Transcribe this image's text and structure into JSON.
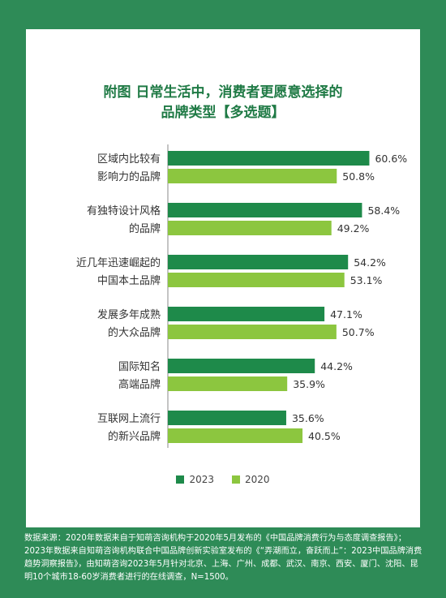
{
  "title_line1": "附图 日常生活中，消费者更愿意选择的",
  "title_line2": "品牌类型【多选题】",
  "colors": {
    "2023": "#1e8a4a",
    "2020": "#8cc63f",
    "background": "#2e8b57"
  },
  "chart_data": {
    "type": "bar",
    "orientation": "horizontal",
    "title": "附图 日常生活中，消费者更愿意选择的品牌类型【多选题】",
    "categories": [
      [
        "区域内比较有",
        "影响力的品牌"
      ],
      [
        "有独特设计风格",
        "的品牌"
      ],
      [
        "近几年迅速崛起的",
        "中国本土品牌"
      ],
      [
        "发展多年成熟",
        "的大众品牌"
      ],
      [
        "国际知名",
        "高端品牌"
      ],
      [
        "互联网上流行",
        "的新兴品牌"
      ]
    ],
    "series": [
      {
        "name": "2023",
        "values": [
          60.6,
          58.4,
          54.2,
          47.1,
          44.2,
          35.6
        ],
        "labels": [
          "60.6%",
          "58.4%",
          "54.2%",
          "47.1%",
          "44.2%",
          "35.6%"
        ]
      },
      {
        "name": "2020",
        "values": [
          50.8,
          49.2,
          53.1,
          50.7,
          35.9,
          40.5
        ],
        "labels": [
          "50.8%",
          "49.2%",
          "53.1%",
          "50.7%",
          "35.9%",
          "40.5%"
        ]
      }
    ],
    "xlim": [
      0,
      100
    ],
    "legend_position": "bottom"
  },
  "source_text": "数据来源：2020年数据来自于知萌咨询机构于2020年5月发布的《中国品牌消费行为与态度调查报告》；2023年数据来自知萌咨询机构联合中国品牌创新实验室发布的《“弄潮而立，奋跃而上”：2023中国品牌消费趋势洞察报告》，由知萌咨询2023年5月针对北京、上海、广州、成都、武汉、南京、西安、厦门、沈阳、昆明10个城市18-60岁消费者进行的在线调查，N=1500。"
}
